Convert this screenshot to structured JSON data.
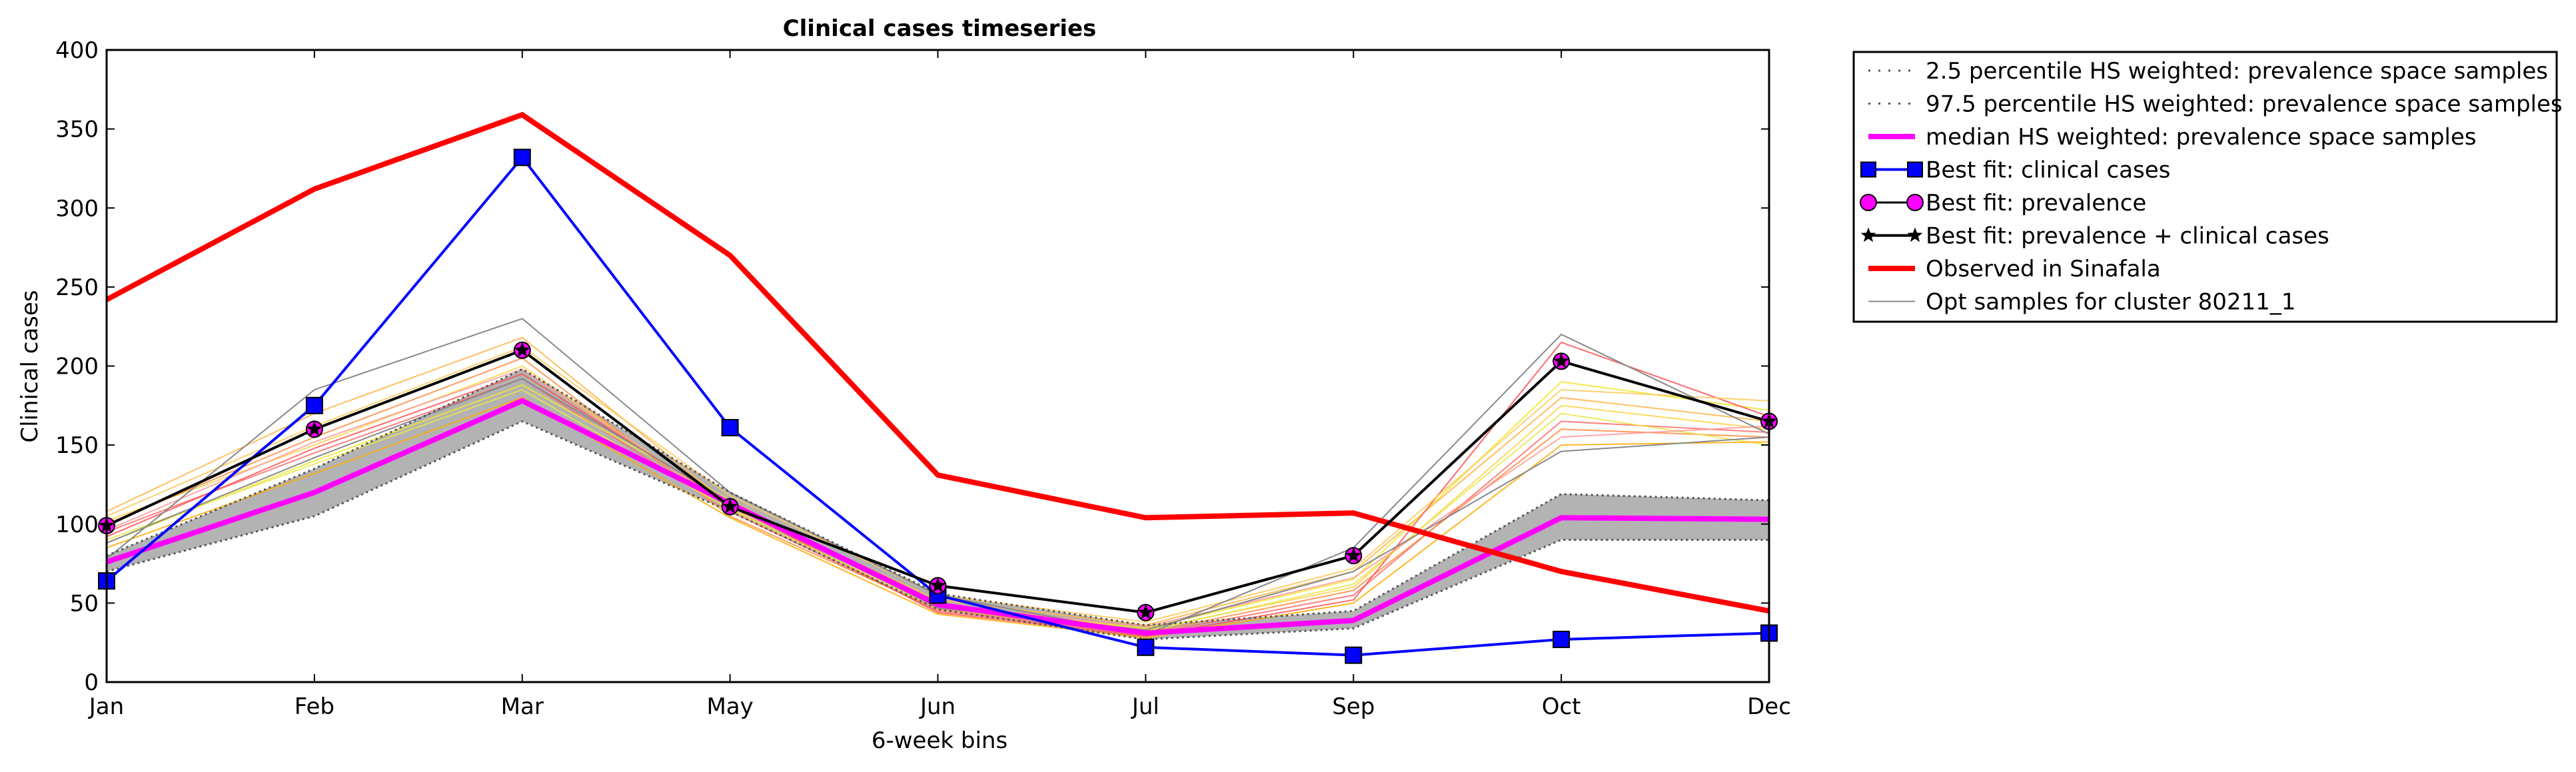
{
  "chart_data": {
    "type": "line",
    "title": "Clinical cases timeseries",
    "xlabel": "6-week bins",
    "ylabel": "Clinical cases",
    "categories": [
      "Jan",
      "Feb",
      "Mar",
      "May",
      "Jun",
      "Jul",
      "Sep",
      "Oct",
      "Dec"
    ],
    "y_ticks": [
      0,
      50,
      100,
      150,
      200,
      250,
      300,
      350,
      400
    ],
    "ylim": [
      0,
      400
    ],
    "grid": false,
    "legend_position": "outside-right",
    "band": {
      "color": "#b3b3b3",
      "lower": [
        70,
        105,
        165,
        108,
        46,
        27,
        34,
        90,
        90
      ],
      "upper": [
        80,
        135,
        198,
        120,
        56,
        36,
        45,
        119,
        115
      ]
    },
    "sample_lines": [
      {
        "color": "#ffb347",
        "values": [
          108,
          170,
          218,
          112,
          52,
          36,
          70,
          180,
          165
        ]
      },
      {
        "color": "#ffd24a",
        "values": [
          102,
          150,
          200,
          110,
          50,
          33,
          60,
          175,
          160
        ]
      },
      {
        "color": "#ff6b6b",
        "values": [
          95,
          145,
          192,
          108,
          45,
          30,
          55,
          165,
          158
        ]
      },
      {
        "color": "#f2e82c",
        "values": [
          88,
          140,
          188,
          115,
          48,
          34,
          65,
          190,
          172
        ]
      },
      {
        "color": "#ff8c42",
        "values": [
          100,
          155,
          205,
          105,
          46,
          31,
          58,
          160,
          155
        ]
      },
      {
        "color": "#ff5050",
        "values": [
          92,
          148,
          195,
          112,
          44,
          29,
          52,
          215,
          168
        ]
      },
      {
        "color": "#ffc857",
        "values": [
          105,
          162,
          212,
          118,
          55,
          38,
          72,
          185,
          178
        ]
      },
      {
        "color": "#e8e84a",
        "values": [
          90,
          138,
          185,
          109,
          47,
          32,
          62,
          170,
          150
        ]
      },
      {
        "color": "#ff9999",
        "values": [
          96,
          152,
          198,
          111,
          49,
          35,
          66,
          155,
          162
        ]
      },
      {
        "color": "#ffaa00",
        "values": [
          85,
          132,
          180,
          104,
          43,
          28,
          50,
          150,
          152
        ]
      }
    ],
    "series": [
      {
        "name": "2.5 percentile HS weighted: prevalence space samples",
        "color": "#555555",
        "style": "dotted",
        "values": [
          70,
          105,
          165,
          108,
          46,
          27,
          34,
          90,
          90
        ]
      },
      {
        "name": "97.5 percentile HS weighted: prevalence space samples",
        "color": "#555555",
        "style": "dotted",
        "values": [
          80,
          135,
          198,
          120,
          56,
          36,
          45,
          119,
          115
        ]
      },
      {
        "name": "median HS weighted: prevalence space samples",
        "color": "#ff00ff",
        "style": "solid-thick",
        "values": [
          76,
          120,
          178,
          113,
          49,
          31,
          39,
          104,
          103
        ]
      },
      {
        "name": "Best fit: clinical cases",
        "color": "#0000ff",
        "style": "line-square",
        "values": [
          64,
          175,
          332,
          161,
          55,
          22,
          17,
          27,
          31
        ]
      },
      {
        "name": "Best fit: prevalence",
        "color": "#ff00ff",
        "style": "marker-circle",
        "values": [
          99,
          160,
          210,
          111,
          61,
          44,
          80,
          203,
          165
        ]
      },
      {
        "name": "Best fit: prevalence + clinical cases",
        "color": "#000000",
        "style": "line-star",
        "values": [
          99,
          160,
          210,
          111,
          61,
          44,
          80,
          203,
          165
        ]
      },
      {
        "name": "Observed in Sinafala",
        "color": "#ff0000",
        "style": "solid-thick",
        "values": [
          242,
          312,
          359,
          270,
          131,
          104,
          107,
          70,
          45
        ]
      },
      {
        "name": "Opt samples for cluster 80211_1",
        "color": "#888888",
        "style": "thin",
        "values": [
          78,
          185,
          230,
          120,
          55,
          30,
          85,
          220,
          157
        ]
      }
    ],
    "extra_opt_sample_values": [
      [
        88,
        142,
        192,
        114,
        47,
        33,
        70,
        146,
        155
      ]
    ]
  }
}
